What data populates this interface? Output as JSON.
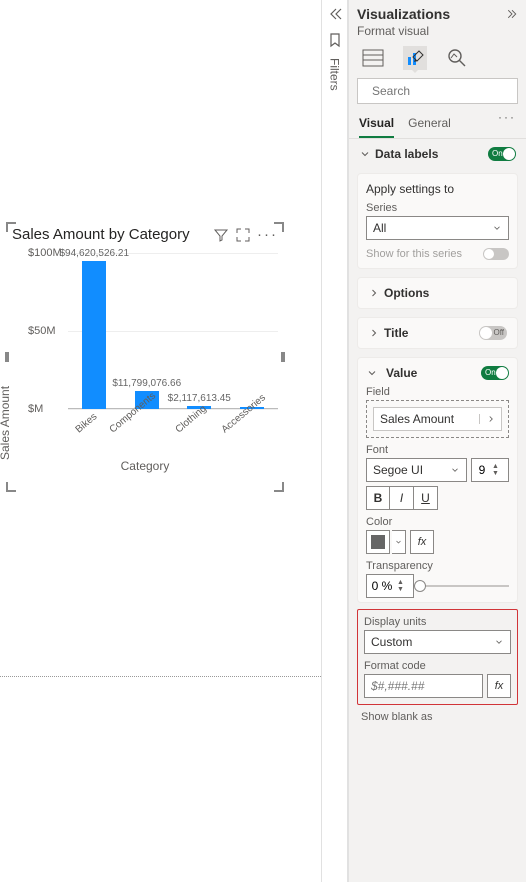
{
  "filters": {
    "label": "Filters"
  },
  "chart": {
    "title": "Sales Amount by Category",
    "y_label": "Sales Amount",
    "x_label": "Category",
    "y_ticks": [
      "$100M",
      "$50M",
      "$M"
    ],
    "y_max": 100,
    "bar_color": "#118dff",
    "bars": [
      {
        "label": "Bikes",
        "value_label": "$94,620,526.21",
        "value": 94.62
      },
      {
        "label": "Components",
        "value_label": "$11,799,076.66",
        "value": 11.8
      },
      {
        "label": "Clothing",
        "value_label": "$2,117,613.45",
        "value": 2.12
      },
      {
        "label": "Accessories",
        "value_label": "",
        "value": 1.27
      }
    ]
  },
  "panel": {
    "title": "Visualizations",
    "subtitle": "Format visual",
    "search_placeholder": "Search",
    "tabs": {
      "visual": "Visual",
      "general": "General"
    },
    "data_labels": {
      "label": "Data labels",
      "on_text": "On"
    },
    "apply": {
      "title": "Apply settings to",
      "series_label": "Series",
      "series_value": "All",
      "show_series": "Show for this series"
    },
    "options": {
      "label": "Options"
    },
    "title_section": {
      "label": "Title",
      "off_text": "Off"
    },
    "value": {
      "label": "Value",
      "on_text": "On",
      "field_label": "Field",
      "field_value": "Sales Amount",
      "font_label": "Font",
      "font_value": "Segoe UI",
      "font_size": "9",
      "bold": "B",
      "italic": "I",
      "underline": "U",
      "color_label": "Color",
      "color_hex": "#666666",
      "transparency_label": "Transparency",
      "transparency_value": "0 %",
      "display_units_label": "Display units",
      "display_units_value": "Custom",
      "format_code_label": "Format code",
      "format_code_value": "$#,###.##",
      "show_blank_label": "Show blank as"
    }
  }
}
